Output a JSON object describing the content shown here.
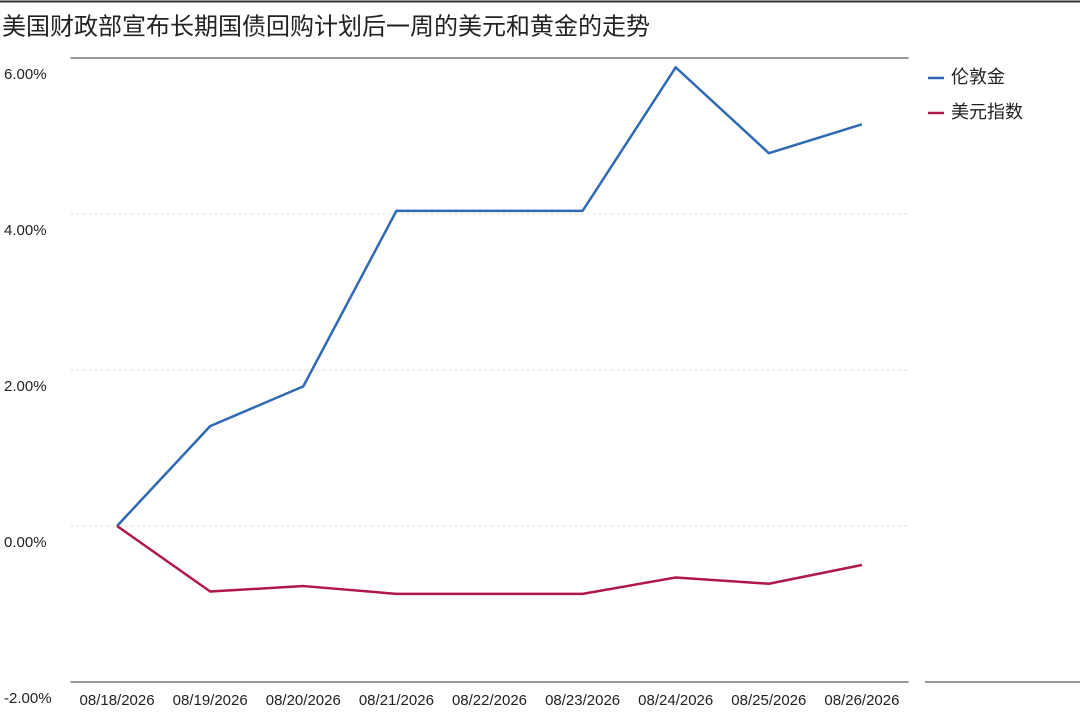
{
  "chart_data": {
    "type": "line",
    "title": "美国财政部宣布长期国债回购计划后一周的美元和黄金的走势",
    "categories": [
      "08/18/2026",
      "08/19/2026",
      "08/20/2026",
      "08/21/2026",
      "08/22/2026",
      "08/23/2026",
      "08/24/2026",
      "08/25/2026",
      "08/26/2026"
    ],
    "series": [
      {
        "name": "伦敦金",
        "color": "#2f69b3",
        "values": [
          0,
          1.28,
          1.79,
          4.04,
          4.04,
          4.04,
          5.88,
          4.78,
          5.15
        ]
      },
      {
        "name": "美元指数",
        "color": "#b0174a",
        "values": [
          0,
          -0.84,
          -0.77,
          -0.87,
          -0.87,
          -0.87,
          -0.66,
          -0.74,
          -0.5
        ]
      }
    ],
    "ylim": [
      -2,
      6
    ],
    "yticks": [
      {
        "value": -2,
        "label": "-2.00%"
      },
      {
        "value": 0,
        "label": "0.00%"
      },
      {
        "value": 2,
        "label": "2.00%"
      },
      {
        "value": 4,
        "label": "4.00%"
      },
      {
        "value": 6,
        "label": "6.00%"
      }
    ],
    "grid": true,
    "legend": "upper-right"
  }
}
